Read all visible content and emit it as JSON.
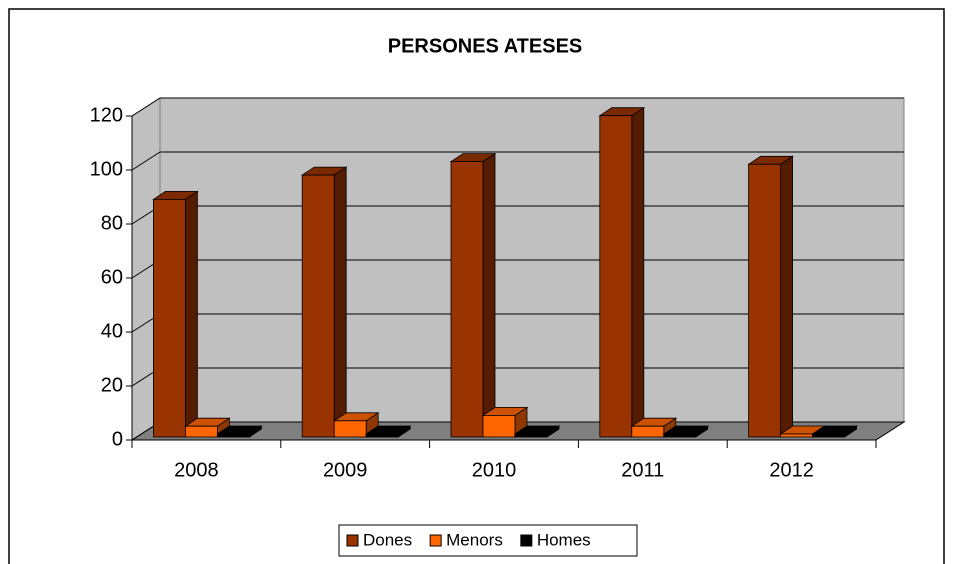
{
  "chart_data": {
    "type": "bar3d",
    "title": "PERSONES ATESES",
    "categories": [
      "2008",
      "2009",
      "2010",
      "2011",
      "2012"
    ],
    "series": [
      {
        "name": "Dones",
        "color": "#993300",
        "values": [
          88,
          97,
          102,
          119,
          101
        ]
      },
      {
        "name": "Menors",
        "color": "#ff6600",
        "values": [
          4,
          6,
          8,
          4,
          0.5
        ]
      },
      {
        "name": "Homes",
        "color": "#000000",
        "values": [
          0,
          0,
          0,
          0,
          0
        ]
      }
    ],
    "ylim": [
      0,
      120
    ],
    "yticks": [
      0,
      20,
      40,
      60,
      80,
      100,
      120
    ],
    "grid": true,
    "legend": "bottom"
  }
}
